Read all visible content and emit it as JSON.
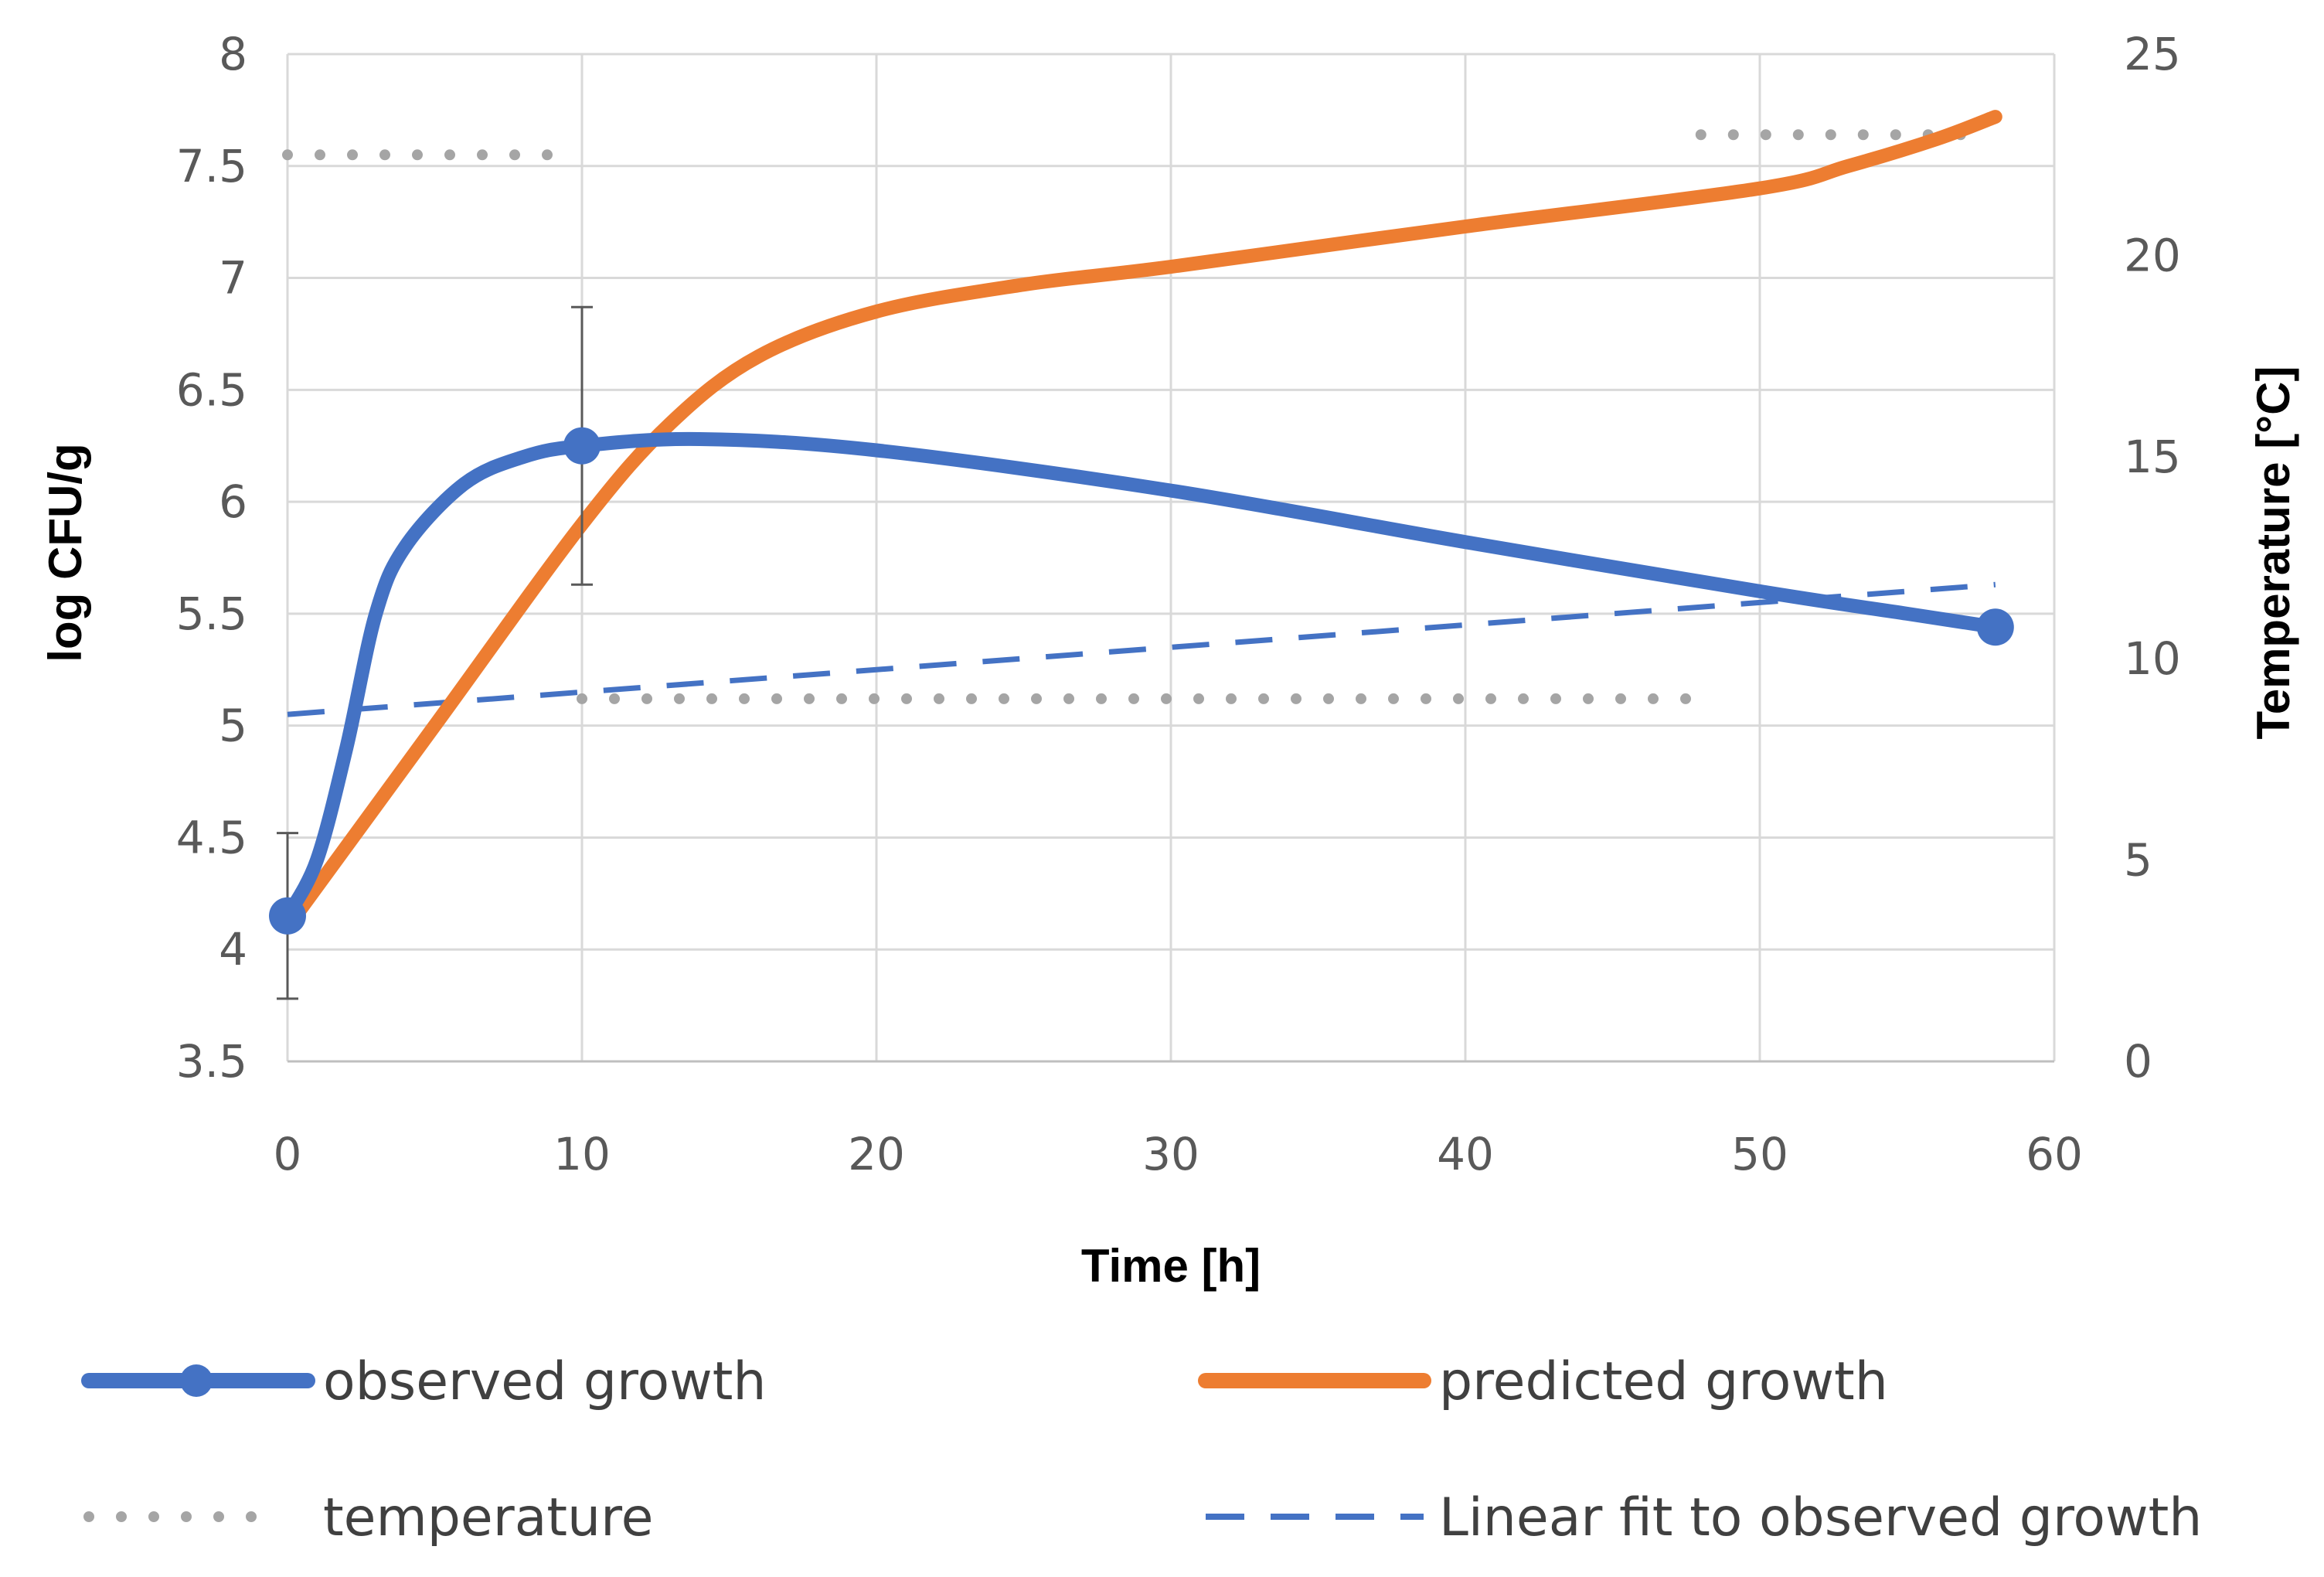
{
  "chart_data": {
    "type": "line",
    "title": "",
    "xlabel": "Time [h]",
    "ylabel": "log CFU/g",
    "y2label": "Temperature [°C]",
    "xlim": [
      0,
      60
    ],
    "ylim": [
      3.5,
      8
    ],
    "y2lim": [
      0,
      25
    ],
    "x_ticks": [
      0,
      10,
      20,
      30,
      40,
      50,
      60
    ],
    "y_ticks": [
      3.5,
      4,
      4.5,
      5,
      5.5,
      6,
      6.5,
      7,
      7.5,
      8
    ],
    "y2_ticks": [
      0,
      5,
      10,
      15,
      20,
      25
    ],
    "x_tick_labels": [
      "0",
      "10",
      "20",
      "30",
      "40",
      "50",
      "60"
    ],
    "y_tick_labels": [
      "3.5",
      "4",
      "4.5",
      "5",
      "5.5",
      "6",
      "6.5",
      "7",
      "7.5",
      "8"
    ],
    "y2_tick_labels": [
      "0",
      "5",
      "10",
      "15",
      "20",
      "25"
    ],
    "grid": true,
    "legend_position": "bottom",
    "series": [
      {
        "name": "observed growth",
        "axis": "left",
        "style": "solid-markers",
        "color": "#4472C4",
        "x": [
          0,
          10,
          58
        ],
        "values": [
          4.15,
          6.25,
          5.44
        ],
        "error": [
          0.37,
          0.62,
          0
        ],
        "smooth_curve": {
          "x": [
            0,
            1,
            2,
            3,
            4,
            6,
            8,
            10,
            14,
            20,
            30,
            40,
            50,
            55,
            58
          ],
          "values": [
            4.15,
            4.4,
            4.9,
            5.5,
            5.8,
            6.08,
            6.2,
            6.25,
            6.28,
            6.23,
            6.05,
            5.82,
            5.6,
            5.5,
            5.44
          ]
        }
      },
      {
        "name": "predicted growth",
        "axis": "left",
        "style": "solid",
        "color": "#ED7D31",
        "x": [
          0,
          5,
          10,
          13,
          16,
          20,
          25,
          30,
          40,
          50,
          53,
          56,
          58
        ],
        "values": [
          4.1,
          5.0,
          5.9,
          6.35,
          6.65,
          6.85,
          6.97,
          7.05,
          7.23,
          7.4,
          7.5,
          7.62,
          7.72
        ]
      },
      {
        "name": "temperature",
        "axis": "right",
        "style": "dotted",
        "color": "#A5A5A5",
        "segments": [
          {
            "x": [
              0,
              9.5
            ],
            "values": [
              22.5,
              22.5
            ]
          },
          {
            "x": [
              10,
              48
            ],
            "values": [
              9,
              9
            ]
          },
          {
            "x": [
              48,
              57
            ],
            "values": [
              23,
              23
            ]
          }
        ]
      },
      {
        "name": "Linear fit to observed growth",
        "axis": "left",
        "style": "dashed",
        "color": "#4472C4",
        "x": [
          0,
          58
        ],
        "values": [
          5.05,
          5.63
        ]
      }
    ]
  }
}
